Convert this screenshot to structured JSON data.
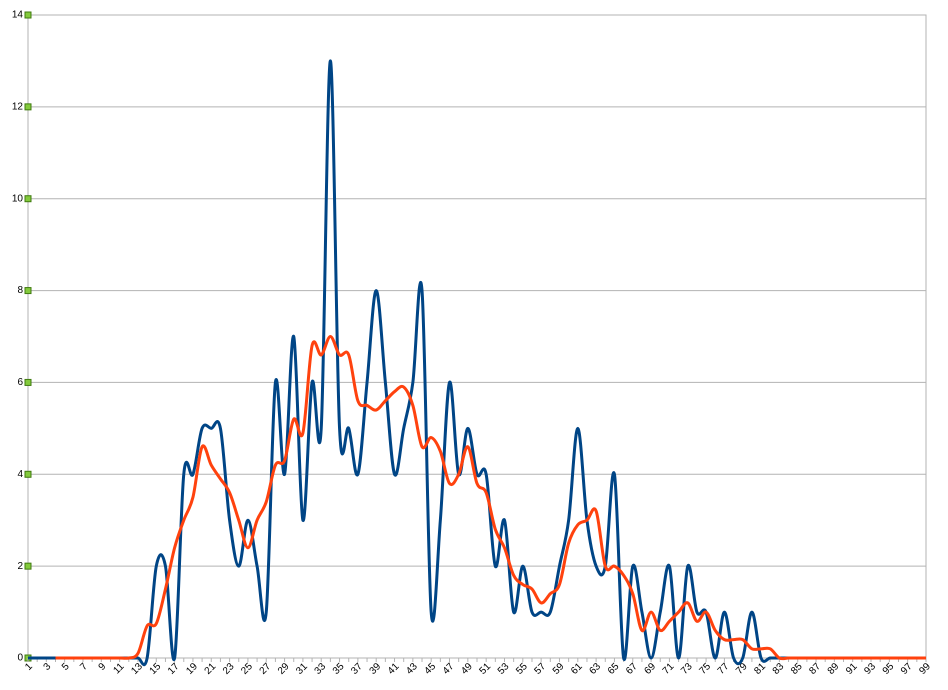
{
  "chart_data": {
    "type": "line",
    "categories": [
      "1",
      null,
      "3",
      null,
      "5",
      null,
      "7",
      null,
      "9",
      null,
      "11",
      null,
      "13",
      null,
      "15",
      null,
      "17",
      null,
      "19",
      null,
      "21",
      null,
      "23",
      null,
      "25",
      null,
      "27",
      null,
      "29",
      null,
      "31",
      null,
      "33",
      null,
      "35",
      null,
      "37",
      null,
      "39",
      null,
      "41",
      null,
      "43",
      null,
      "45",
      null,
      "47",
      null,
      "49",
      null,
      "51",
      null,
      "53",
      null,
      "55",
      null,
      "57",
      null,
      "59",
      null,
      "61",
      null,
      "63",
      null,
      "65",
      null,
      "67",
      null,
      "69",
      null,
      "71",
      null,
      "73",
      null,
      "75",
      null,
      "77",
      null,
      "79",
      null,
      "81",
      null,
      "83",
      null,
      "85",
      null,
      "87",
      null,
      "89",
      null,
      "91",
      null,
      "93",
      null,
      "95",
      null,
      "97",
      null,
      "99"
    ],
    "series": [
      {
        "color": "#004586",
        "values": [
          0,
          0,
          0,
          0,
          0,
          0,
          0,
          0,
          0,
          0,
          0,
          0,
          0,
          0,
          2,
          2,
          0,
          4,
          4,
          5,
          5,
          5,
          3,
          2,
          3,
          2,
          1,
          6,
          4,
          7,
          3,
          6,
          5,
          13,
          5,
          5,
          4,
          6,
          8,
          6,
          4,
          5,
          6,
          8,
          1,
          3,
          6,
          4,
          5,
          4,
          4,
          2,
          3,
          1,
          2,
          1,
          1,
          1,
          2,
          3,
          5,
          3,
          2,
          2,
          4,
          0,
          2,
          1,
          0,
          1,
          2,
          0,
          2,
          1,
          1,
          0,
          1,
          0,
          0,
          1,
          0,
          0,
          0,
          0,
          0,
          0,
          0,
          0,
          0,
          0,
          0,
          0,
          0,
          0,
          0,
          0,
          0,
          0,
          0
        ]
      },
      {
        "color": "#ff420e",
        "values": [
          null,
          null,
          null,
          0,
          0,
          0,
          0,
          0,
          0,
          0,
          0,
          0,
          0.1,
          0.7,
          0.75,
          1.5,
          2.4,
          3.0,
          3.5,
          4.6,
          4.2,
          3.9,
          3.6,
          3.0,
          2.4,
          3.0,
          3.4,
          4.2,
          4.3,
          5.2,
          4.9,
          6.8,
          6.6,
          7.0,
          6.6,
          6.6,
          5.6,
          5.5,
          5.4,
          5.6,
          5.8,
          5.9,
          5.5,
          4.6,
          4.8,
          4.5,
          3.8,
          4.0,
          4.6,
          3.8,
          3.6,
          2.8,
          2.4,
          1.8,
          1.6,
          1.5,
          1.2,
          1.4,
          1.6,
          2.5,
          2.9,
          3.0,
          3.2,
          2.0,
          2.0,
          1.8,
          1.4,
          0.6,
          1.0,
          0.6,
          0.8,
          1.0,
          1.2,
          0.8,
          1.0,
          0.6,
          0.4,
          0.4,
          0.4,
          0.2,
          0.2,
          0.2,
          0,
          0,
          0,
          0,
          0,
          0,
          0,
          0,
          0,
          0,
          0,
          0,
          0,
          0,
          0,
          0,
          0
        ]
      }
    ],
    "ylim": [
      0,
      14
    ],
    "yticks": [
      0,
      2,
      4,
      6,
      8,
      10,
      12,
      14
    ],
    "grid": true
  }
}
